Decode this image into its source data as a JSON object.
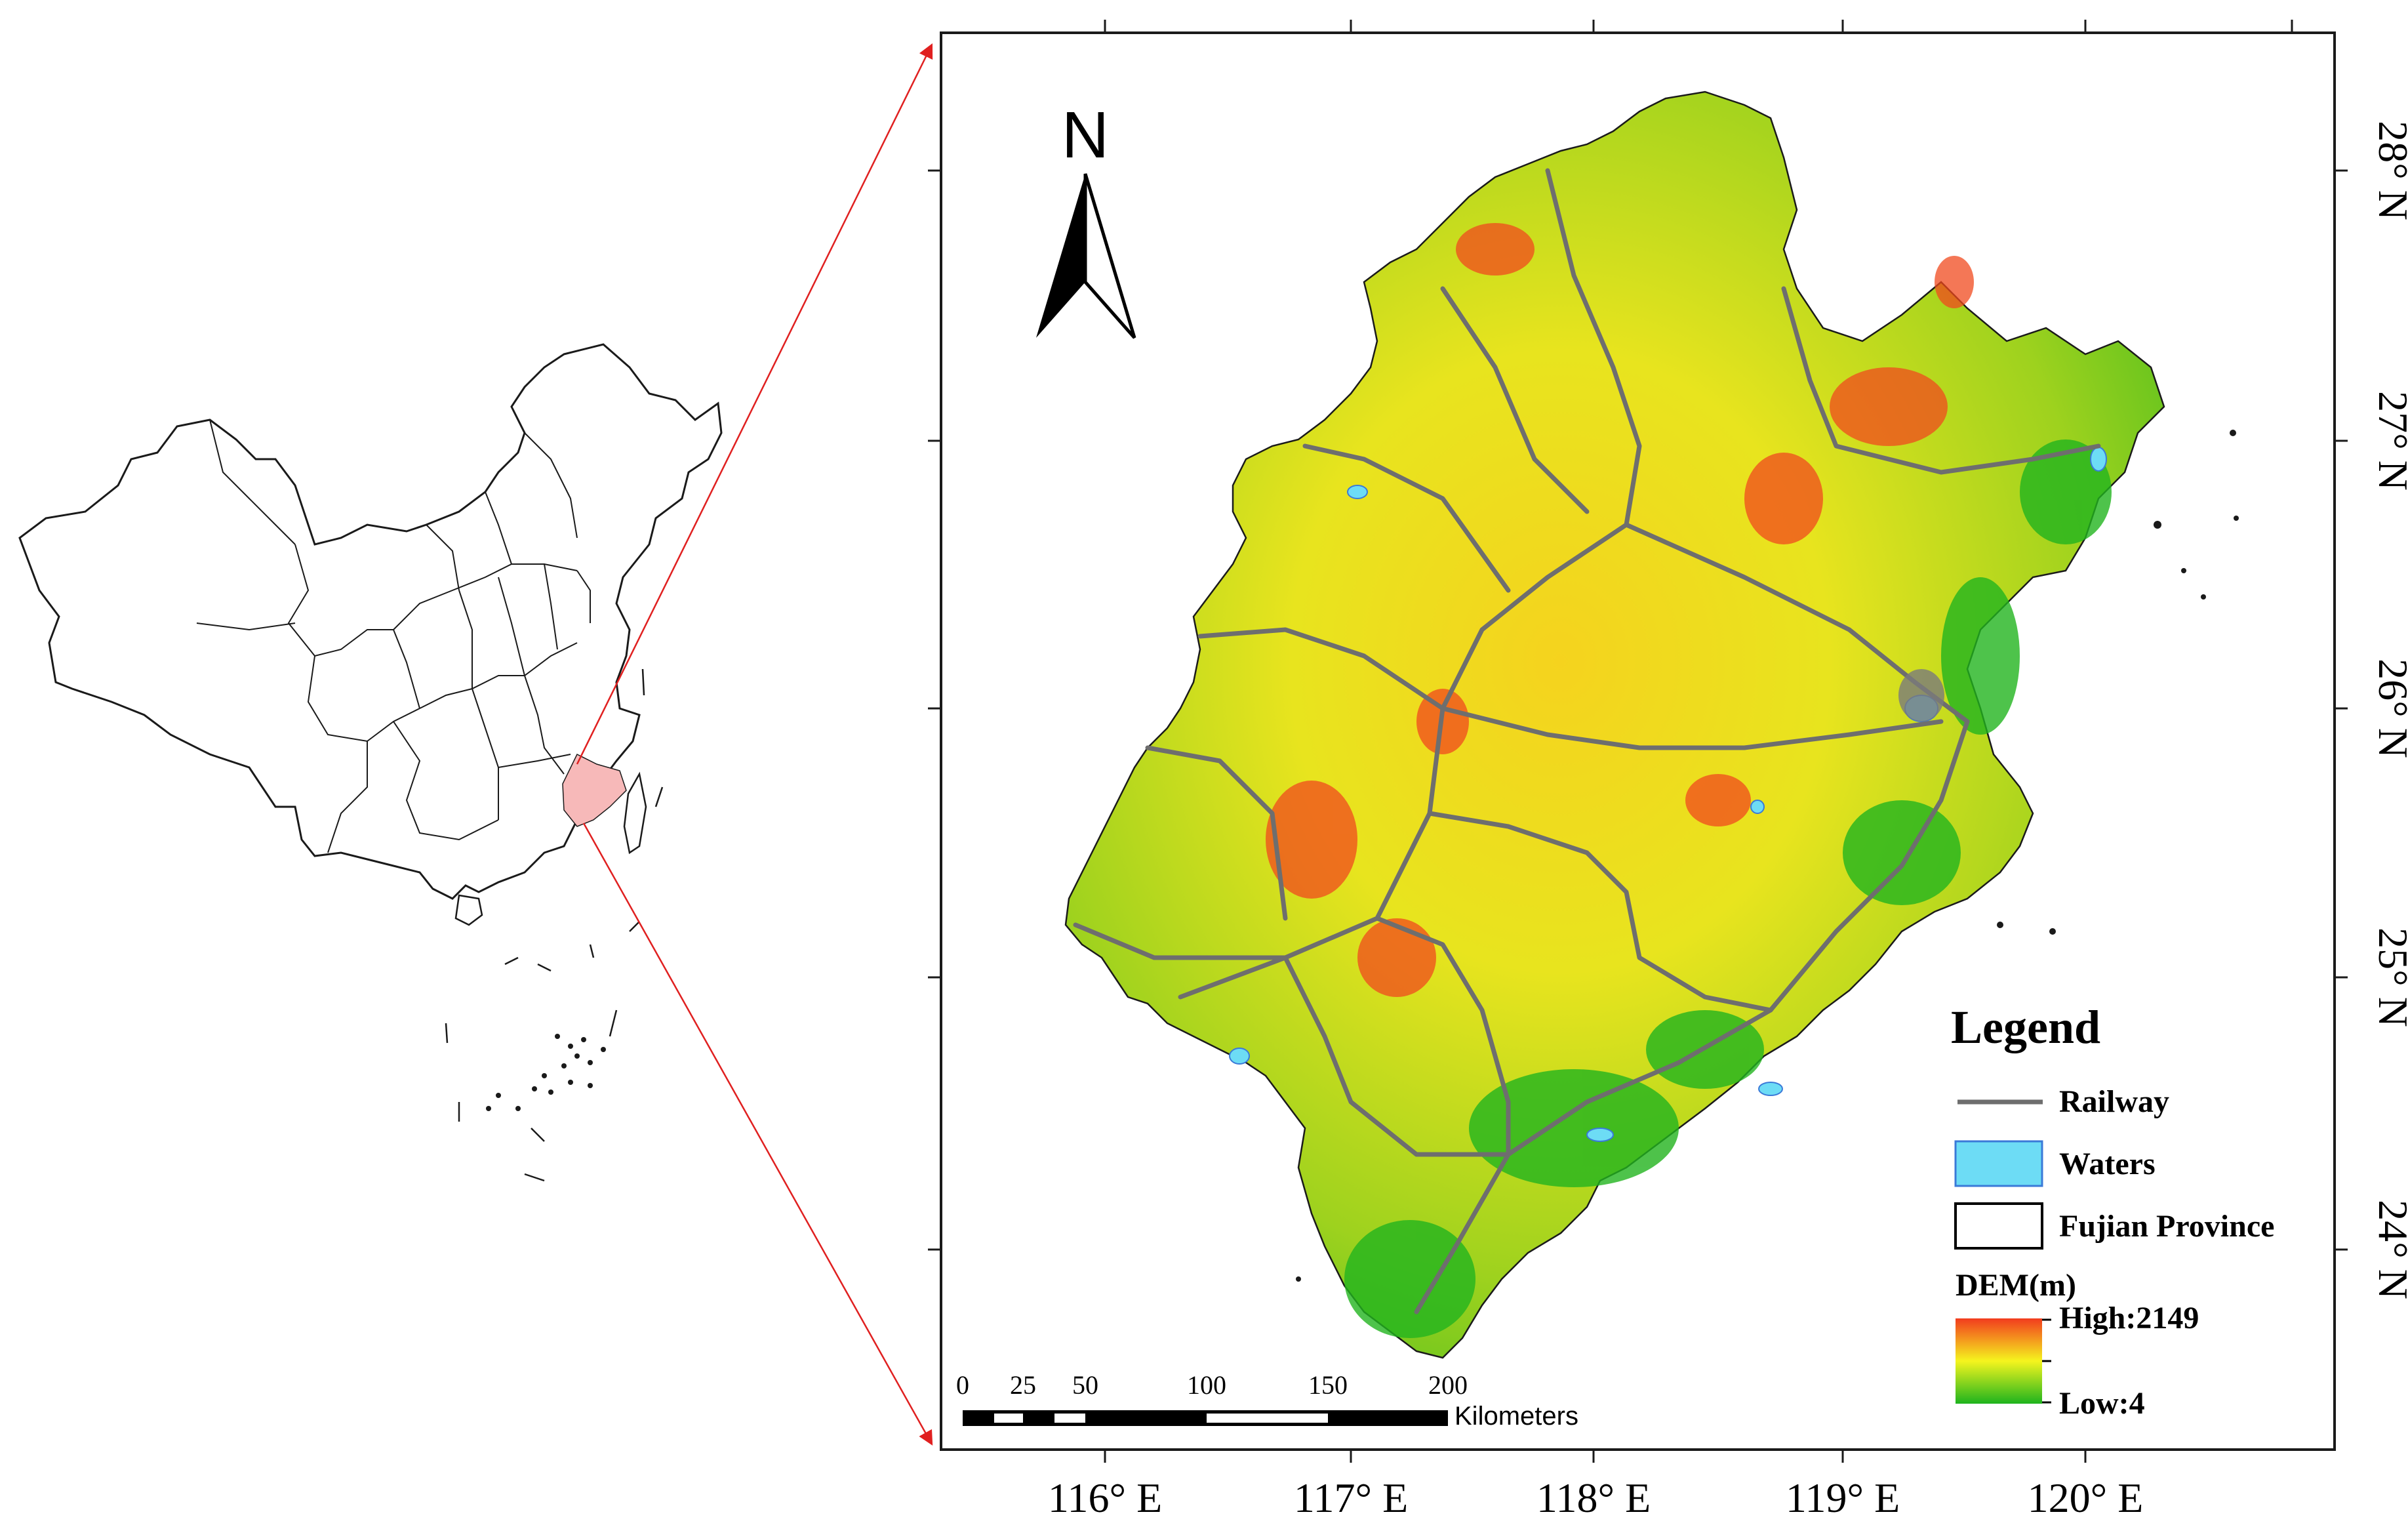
{
  "map": {
    "north_label": "N",
    "lon_ticks": [
      "116° E",
      "117° E",
      "118° E",
      "119° E",
      "120° E"
    ],
    "lat_ticks": [
      "28° N",
      "27° N",
      "26° N",
      "25° N",
      "24° N"
    ],
    "scale_bar": {
      "labels": [
        "0",
        "25",
        "50",
        "100",
        "150",
        "200"
      ],
      "unit": "Kilometers"
    }
  },
  "legend": {
    "title": "Legend",
    "items": [
      {
        "label": "Railway"
      },
      {
        "label": "Waters"
      },
      {
        "label": "Fujian Province"
      }
    ],
    "dem": {
      "title": "DEM(m)",
      "high": "High:2149",
      "low": "Low:4"
    }
  },
  "colors": {
    "dem_high": "#f23c1e",
    "dem_mid": "#f5f51e",
    "dem_low": "#1eb41e",
    "waters": "#6ddcf5",
    "railway": "#6e6e6e",
    "highlight": "#f7b9b9",
    "callout_line": "#e02020"
  }
}
